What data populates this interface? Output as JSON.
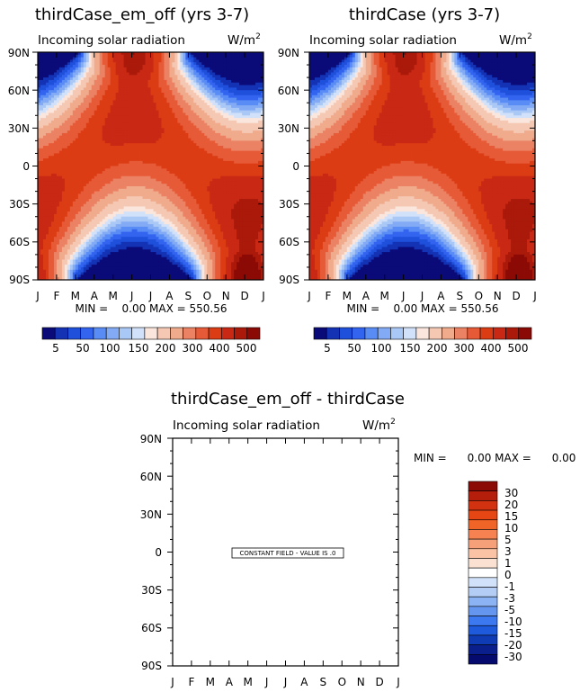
{
  "chart_data": [
    {
      "type": "heatmap",
      "title": "thirdCase_em_off (yrs 3-7)",
      "subtitle": "Incoming solar radiation",
      "units": "W/m",
      "units_sup": "2",
      "x_tick_labels": [
        "J",
        "F",
        "M",
        "A",
        "M",
        "J",
        "J",
        "A",
        "S",
        "O",
        "N",
        "D",
        "J"
      ],
      "y_tick_labels": [
        "90N",
        "60N",
        "30N",
        "0",
        "30S",
        "60S",
        "90S"
      ],
      "ylim": [
        -90,
        90
      ],
      "min_max": "MIN =    0.00 MAX = 550.56",
      "stats": {
        "min": 0.0,
        "max": 550.56
      },
      "colorbar_labels": [
        "5",
        "50",
        "100",
        "150",
        "200",
        "300",
        "400",
        "500"
      ],
      "colors": [
        "#0a0a78",
        "#1432b4",
        "#1e50dc",
        "#3264f0",
        "#5a8cf5",
        "#82aaf5",
        "#aac8f5",
        "#d2e1fa",
        "#fae6dc",
        "#f5c8b4",
        "#f0aa8c",
        "#eb8264",
        "#e65a37",
        "#dc3c14",
        "#c82814",
        "#aa190a",
        "#8c0a05"
      ]
    },
    {
      "type": "heatmap",
      "title": "thirdCase (yrs 3-7)",
      "subtitle": "Incoming solar radiation",
      "units": "W/m",
      "units_sup": "2",
      "x_tick_labels": [
        "J",
        "F",
        "M",
        "A",
        "M",
        "J",
        "J",
        "A",
        "S",
        "O",
        "N",
        "D",
        "J"
      ],
      "y_tick_labels": [
        "90N",
        "60N",
        "30N",
        "0",
        "30S",
        "60S",
        "90S"
      ],
      "ylim": [
        -90,
        90
      ],
      "min_max": "MIN =    0.00 MAX = 550.56",
      "stats": {
        "min": 0.0,
        "max": 550.56
      },
      "colorbar_labels": [
        "5",
        "50",
        "100",
        "150",
        "200",
        "300",
        "400",
        "500"
      ],
      "colors": [
        "#0a0a78",
        "#1432b4",
        "#1e50dc",
        "#3264f0",
        "#5a8cf5",
        "#82aaf5",
        "#aac8f5",
        "#d2e1fa",
        "#fae6dc",
        "#f5c8b4",
        "#f0aa8c",
        "#eb8264",
        "#e65a37",
        "#dc3c14",
        "#c82814",
        "#aa190a",
        "#8c0a05"
      ]
    },
    {
      "type": "heatmap",
      "title": "thirdCase_em_off - thirdCase",
      "subtitle": "Incoming solar radiation",
      "units": "W/m",
      "units_sup": "2",
      "x_tick_labels": [
        "J",
        "F",
        "M",
        "A",
        "M",
        "J",
        "J",
        "A",
        "S",
        "O",
        "N",
        "D",
        "J"
      ],
      "y_tick_labels": [
        "90N",
        "60N",
        "30N",
        "0",
        "30S",
        "60S",
        "90S"
      ],
      "ylim": [
        -90,
        90
      ],
      "min_max": "MIN =      0.00 MAX =      0.00",
      "stats": {
        "min": 0.0,
        "max": 0.0
      },
      "annotation": "CONSTANT FIELD - VALUE IS .0",
      "colorbar_labels": [
        "30",
        "20",
        "15",
        "10",
        "5",
        "3",
        "1",
        "0",
        "-1",
        "-3",
        "-5",
        "-10",
        "-15",
        "-20",
        "-30"
      ],
      "colors": [
        "#8c0a05",
        "#b41e0a",
        "#d2320f",
        "#e64614",
        "#f06428",
        "#f58250",
        "#f5a078",
        "#fac3a5",
        "#fae1d2",
        "#ffffff",
        "#d2e1fa",
        "#b4cdf5",
        "#8cb4f5",
        "#6496f0",
        "#3c78f0",
        "#1e5adc",
        "#0f3cb4",
        "#0a1e8c",
        "#050a6e"
      ]
    }
  ]
}
